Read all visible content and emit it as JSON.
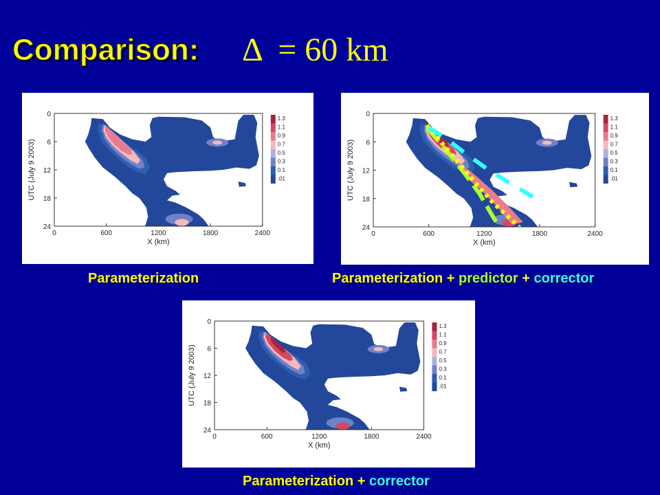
{
  "slide": {
    "title": "Comparison:",
    "formula": "Δ  = 60 km"
  },
  "captions": {
    "left": "Parameterization",
    "right_base": "Parameterization  +",
    "right_pred": "predictor",
    "right_plus": "+",
    "right_corr": "corrector",
    "bottom_base": "Parameterization +",
    "bottom_corr": "corrector"
  },
  "colors": {
    "background": "#000099",
    "caption": "#ffff00",
    "predictor": "#aaff33",
    "corrector": "#33ffff",
    "levels": [
      "#23479a",
      "#2f5db0",
      "#6f82c8",
      "#a9b3e0",
      "#f4b8c0",
      "#eb7a8c",
      "#d8475e",
      "#a52540"
    ]
  },
  "chart_data": [
    {
      "type": "contour",
      "caption": "Parameterization",
      "xlabel": "X (km)",
      "ylabel": "UTC (July 9 2003)",
      "xticks": [
        0,
        600,
        1200,
        1800,
        2400
      ],
      "yticks": [
        0,
        6,
        12,
        18,
        24
      ],
      "xlim": [
        0,
        2400
      ],
      "ylim": [
        0,
        24
      ],
      "legend": {
        "position": "right",
        "levels": [
          "1.3",
          "1.1",
          "0.9",
          "0.7",
          "0.5",
          "0.3",
          "0.1",
          ".01"
        ]
      },
      "features": {
        "predictor_line": false,
        "corrector_line": false,
        "intensity": "medium"
      }
    },
    {
      "type": "contour",
      "caption": "Parameterization  + predictor + corrector",
      "xlabel": "X (km)",
      "ylabel": "UTC (July 9 2003)",
      "xticks": [
        0,
        600,
        1200,
        1800,
        2400
      ],
      "yticks": [
        0,
        6,
        12,
        18,
        24
      ],
      "xlim": [
        0,
        2400
      ],
      "ylim": [
        0,
        24
      ],
      "legend": {
        "position": "right",
        "levels": [
          "1.3",
          "1.1",
          "0.9",
          "0.7",
          "0.5",
          "0.3",
          "0.1",
          ".01"
        ]
      },
      "features": {
        "predictor_line": true,
        "corrector_line": true,
        "intensity": "high"
      }
    },
    {
      "type": "contour",
      "caption": "Parameterization + corrector",
      "xlabel": "X (km)",
      "ylabel": "UTC (July 9 2003)",
      "xticks": [
        0,
        600,
        1200,
        1800,
        2400
      ],
      "yticks": [
        0,
        6,
        12,
        18,
        24
      ],
      "xlim": [
        0,
        2400
      ],
      "ylim": [
        0,
        24
      ],
      "legend": {
        "position": "right",
        "levels": [
          "1.3",
          "1.1",
          "0.9",
          "0.7",
          "0.5",
          "0.3",
          "0.1",
          ".01"
        ]
      },
      "features": {
        "predictor_line": false,
        "corrector_line": false,
        "intensity": "high"
      }
    }
  ]
}
